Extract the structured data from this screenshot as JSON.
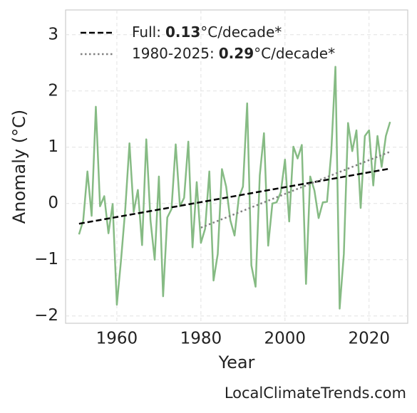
{
  "chart_data": {
    "type": "line",
    "x_label": "Year",
    "y_label": "Anomaly (°C)",
    "source": "LocalClimateTrends.com",
    "xlim": [
      1947.8,
      2029.2
    ],
    "ylim": [
      -2.13,
      3.44
    ],
    "xticks": [
      1960,
      1980,
      2000,
      2020
    ],
    "yticks": [
      {
        "value": -2,
        "label": "−2"
      },
      {
        "value": -1,
        "label": "−1"
      },
      0,
      1,
      2,
      3
    ],
    "grid": true,
    "legend": "upper left",
    "series": [
      {
        "color": "#86bb84",
        "style": "solid",
        "x": [
          1951,
          1952,
          1953,
          1954,
          1955,
          1956,
          1957,
          1958,
          1959,
          1960,
          1961,
          1962,
          1963,
          1964,
          1965,
          1966,
          1967,
          1968,
          1969,
          1970,
          1971,
          1972,
          1973,
          1974,
          1975,
          1976,
          1977,
          1978,
          1979,
          1980,
          1981,
          1982,
          1983,
          1984,
          1985,
          1986,
          1987,
          1988,
          1989,
          1990,
          1991,
          1992,
          1993,
          1994,
          1995,
          1996,
          1997,
          1998,
          1999,
          2000,
          2001,
          2002,
          2003,
          2004,
          2005,
          2006,
          2007,
          2008,
          2009,
          2010,
          2011,
          2012,
          2013,
          2014,
          2015,
          2016,
          2017,
          2018,
          2019,
          2020,
          2021,
          2022,
          2023,
          2024,
          2025
        ],
        "values": [
          -0.55,
          -0.3,
          0.57,
          -0.22,
          1.72,
          -0.05,
          0.13,
          -0.53,
          -0.01,
          -1.8,
          -1.0,
          -0.1,
          1.07,
          -0.15,
          0.24,
          -0.74,
          1.14,
          -0.3,
          -1.0,
          0.48,
          -1.65,
          -0.25,
          -0.1,
          1.05,
          -0.05,
          0.1,
          1.1,
          -0.78,
          0.38,
          -0.7,
          -0.45,
          0.57,
          -1.37,
          -0.9,
          0.61,
          0.3,
          -0.3,
          -0.57,
          0.1,
          0.3,
          1.78,
          -1.1,
          -1.48,
          0.5,
          1.25,
          -0.75,
          0.0,
          0.02,
          0.2,
          0.78,
          -0.32,
          1.01,
          0.8,
          1.04,
          -1.43,
          0.48,
          0.23,
          -0.26,
          0.02,
          0.03,
          0.9,
          2.43,
          -1.87,
          -0.9,
          1.43,
          0.93,
          1.3,
          -0.08,
          1.2,
          1.3,
          0.32,
          1.2,
          0.65,
          1.2,
          1.45
        ]
      },
      {
        "name": "Full:",
        "rate": 0.13,
        "unit": "°C/decade*",
        "color": "#000000",
        "style": "dashed",
        "x": [
          1951,
          2025
        ],
        "values": [
          -0.36,
          0.62
        ]
      },
      {
        "name": "1980-2025:",
        "rate": 0.29,
        "unit": "°C/decade*",
        "color": "#808080",
        "style": "dotted",
        "x": [
          1980,
          2025
        ],
        "values": [
          -0.43,
          0.92
        ]
      }
    ]
  }
}
